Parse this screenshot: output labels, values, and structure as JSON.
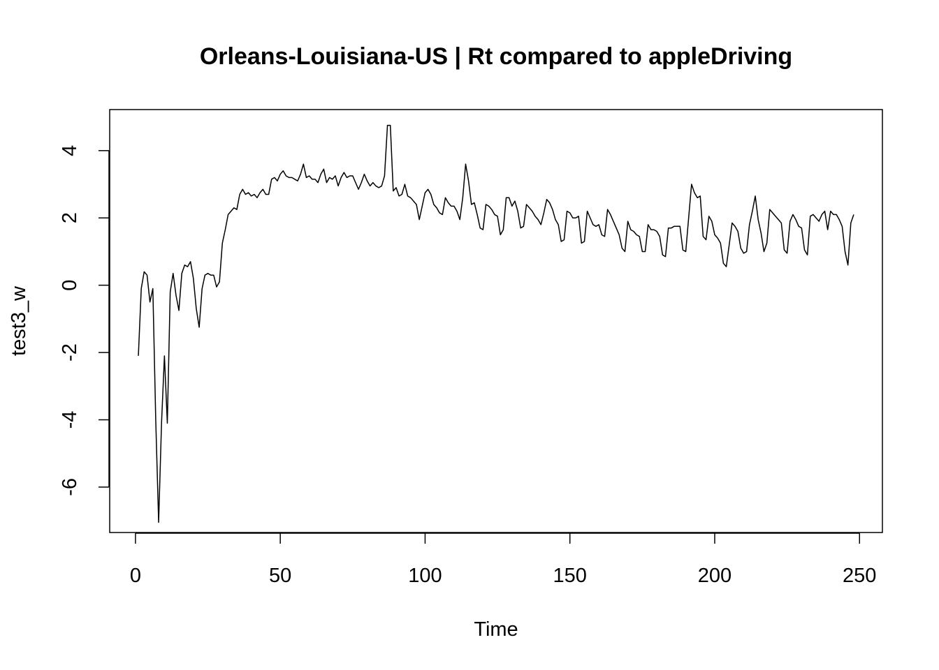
{
  "chart_data": {
    "type": "line",
    "title": "Orleans-Louisiana-US | Rt compared to appleDriving",
    "xlabel": "Time",
    "ylabel": "test3_w",
    "xlim": [
      -8.9,
      257.9
    ],
    "ylim": [
      -7.35,
      5.22
    ],
    "x_ticks": [
      0,
      50,
      100,
      150,
      200,
      250
    ],
    "y_ticks": [
      -6,
      -4,
      -2,
      0,
      2,
      4
    ],
    "grid": false,
    "legend": "none",
    "line_color": "#000000",
    "series": [
      {
        "x_start": 1,
        "values": [
          -2.1,
          -0.1,
          0.4,
          0.3,
          -0.5,
          -0.1,
          -4.0,
          -7.05,
          -4.1,
          -2.1,
          -4.1,
          -0.2,
          0.35,
          -0.3,
          -0.75,
          0.35,
          0.6,
          0.55,
          0.7,
          0.2,
          -0.7,
          -1.25,
          -0.1,
          0.3,
          0.35,
          0.3,
          0.3,
          -0.05,
          0.1,
          1.25,
          1.65,
          2.1,
          2.2,
          2.3,
          2.25,
          2.7,
          2.85,
          2.7,
          2.75,
          2.65,
          2.7,
          2.6,
          2.75,
          2.85,
          2.7,
          2.7,
          3.15,
          3.2,
          3.1,
          3.3,
          3.4,
          3.25,
          3.2,
          3.2,
          3.15,
          3.1,
          3.3,
          3.6,
          3.2,
          3.25,
          3.15,
          3.15,
          3.05,
          3.3,
          3.45,
          3.05,
          3.2,
          3.15,
          3.25,
          2.95,
          3.2,
          3.35,
          3.2,
          3.25,
          3.25,
          3.05,
          2.85,
          3.05,
          3.3,
          3.1,
          2.95,
          3.05,
          2.95,
          2.9,
          2.95,
          3.25,
          4.75,
          4.75,
          2.8,
          2.9,
          2.65,
          2.7,
          3.0,
          2.65,
          2.6,
          2.5,
          2.4,
          1.95,
          2.35,
          2.75,
          2.85,
          2.7,
          2.4,
          2.3,
          2.15,
          2.1,
          2.6,
          2.45,
          2.35,
          2.35,
          2.2,
          1.95,
          2.6,
          3.6,
          3.1,
          2.4,
          2.45,
          2.1,
          1.7,
          1.65,
          2.4,
          2.35,
          2.25,
          2.1,
          2.05,
          1.5,
          1.65,
          2.6,
          2.6,
          2.35,
          2.5,
          2.2,
          1.7,
          1.75,
          2.4,
          2.3,
          2.2,
          2.05,
          1.95,
          1.8,
          2.15,
          2.55,
          2.45,
          2.25,
          1.95,
          1.8,
          1.3,
          1.35,
          2.2,
          2.15,
          2.0,
          2.0,
          2.05,
          1.25,
          1.3,
          2.2,
          2.0,
          1.8,
          1.75,
          1.8,
          1.5,
          1.45,
          2.25,
          2.1,
          1.9,
          1.7,
          1.5,
          1.1,
          1.0,
          1.9,
          1.65,
          1.6,
          1.5,
          1.45,
          1.0,
          1.0,
          1.8,
          1.65,
          1.65,
          1.6,
          1.45,
          0.9,
          0.85,
          1.7,
          1.7,
          1.75,
          1.75,
          1.75,
          1.05,
          1.0,
          2.0,
          3.0,
          2.75,
          2.6,
          2.65,
          1.45,
          1.35,
          2.05,
          1.9,
          1.5,
          1.4,
          1.25,
          0.65,
          0.55,
          1.2,
          1.85,
          1.75,
          1.6,
          1.1,
          0.95,
          1.0,
          1.8,
          2.2,
          2.65,
          1.95,
          1.55,
          1.0,
          1.25,
          2.25,
          2.15,
          2.05,
          1.95,
          1.85,
          1.05,
          0.95,
          1.9,
          2.1,
          1.95,
          1.75,
          1.7,
          1.05,
          0.9,
          2.05,
          2.1,
          2.0,
          1.9,
          2.1,
          2.2,
          1.65,
          2.2,
          2.1,
          2.1,
          1.95,
          1.75,
          1.0,
          0.6,
          1.85,
          2.1
        ]
      }
    ]
  }
}
